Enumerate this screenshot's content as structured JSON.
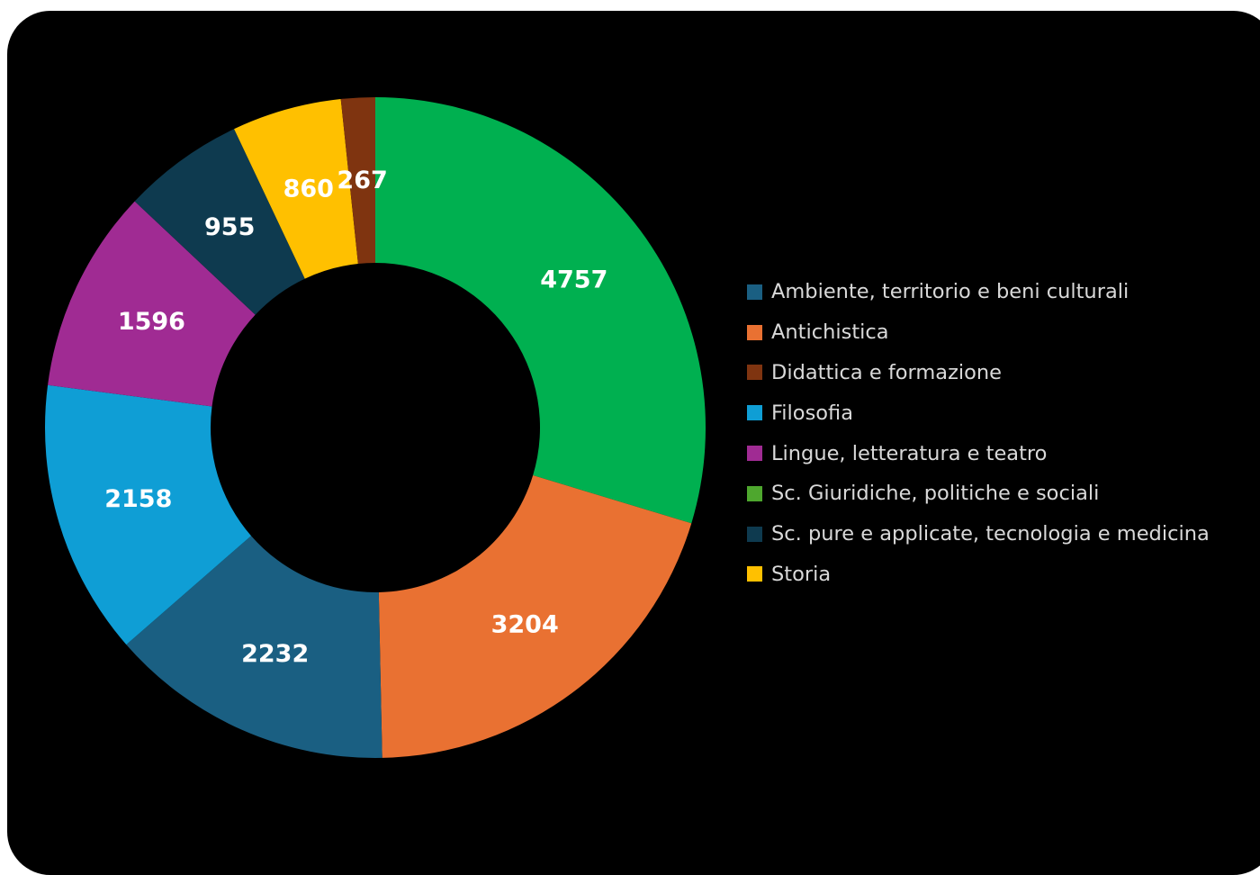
{
  "chart_data": {
    "type": "pie",
    "variant": "donut",
    "legend_position": "right",
    "legend": [
      {
        "label": "Ambiente, territorio e beni culturali",
        "color": "#1a5f82"
      },
      {
        "label": "Antichistica",
        "color": "#e97132"
      },
      {
        "label": "Didattica e formazione",
        "color": "#7f3410"
      },
      {
        "label": "Filosofia",
        "color": "#0f9ed5"
      },
      {
        "label": "Lingue, letteratura e teatro",
        "color": "#a02b93"
      },
      {
        "label": "Sc. Giuridiche, politiche e sociali",
        "color": "#4ea72e"
      },
      {
        "label": "Sc. pure e applicate, tecnologia e medicina",
        "color": "#0e3a4f"
      },
      {
        "label": "Storia",
        "color": "#ffc000"
      }
    ],
    "slices": [
      {
        "value": 4757,
        "label": "4757",
        "color": "#00b050"
      },
      {
        "value": 3204,
        "label": "3204",
        "color": "#e97132"
      },
      {
        "value": 2232,
        "label": "2232",
        "color": "#1a5f82"
      },
      {
        "value": 2158,
        "label": "2158",
        "color": "#0f9ed5"
      },
      {
        "value": 1596,
        "label": "1596",
        "color": "#a02b93"
      },
      {
        "value": 955,
        "label": "955",
        "color": "#0e3a4f"
      },
      {
        "value": 860,
        "label": "860",
        "color": "#ffc000"
      },
      {
        "value": 267,
        "label": "267",
        "color": "#7f3410"
      }
    ]
  }
}
